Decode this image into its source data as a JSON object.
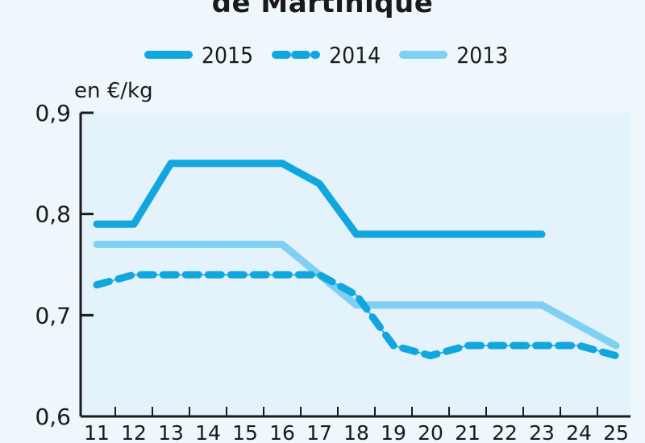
{
  "chart_data": {
    "type": "line",
    "title": "de Martinique",
    "ylabel": "en €/kg",
    "xlabel": "",
    "x": [
      11,
      12,
      13,
      14,
      15,
      16,
      17,
      18,
      19,
      20,
      21,
      22,
      23,
      24,
      25
    ],
    "x_tick_labels": [
      "11",
      "12",
      "13",
      "14",
      "15",
      "16",
      "17",
      "18",
      "19",
      "20",
      "21",
      "22",
      "23",
      "24",
      "25"
    ],
    "ylim": [
      0.6,
      0.9
    ],
    "y_ticks": [
      0.6,
      0.7,
      0.8,
      0.9
    ],
    "y_tick_labels": [
      "0,6",
      "0,7",
      "0,8",
      "0,9"
    ],
    "grid": false,
    "legend_position": "top",
    "series": [
      {
        "name": "2015",
        "color": "#12a6df",
        "style": "solid",
        "values": [
          0.79,
          0.79,
          0.85,
          0.85,
          0.85,
          0.85,
          0.83,
          0.78,
          0.78,
          0.78,
          0.78,
          0.78,
          0.78,
          null,
          null
        ]
      },
      {
        "name": "2014",
        "color": "#12a6df",
        "style": "dashed",
        "values": [
          0.73,
          0.74,
          0.74,
          0.74,
          0.74,
          0.74,
          0.74,
          0.72,
          0.67,
          0.66,
          0.67,
          0.67,
          0.67,
          0.67,
          0.66
        ]
      },
      {
        "name": "2013",
        "color": "#7fd0f2",
        "style": "solid",
        "values": [
          0.77,
          0.77,
          0.77,
          0.77,
          0.77,
          0.77,
          0.74,
          0.71,
          0.71,
          0.71,
          0.71,
          0.71,
          0.71,
          0.69,
          0.67
        ]
      }
    ]
  }
}
